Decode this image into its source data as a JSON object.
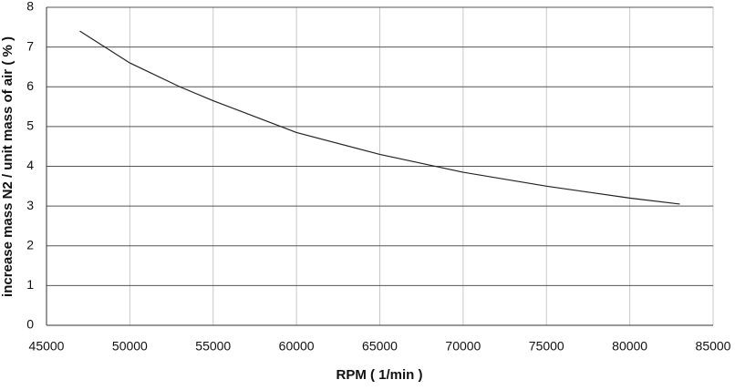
{
  "chart_data": {
    "type": "line",
    "x_label": "RPM ( 1/min )",
    "y_label": "increase mass N2 / unit mass of air ( % )",
    "x": [
      47000,
      50000,
      53000,
      55000,
      60000,
      65000,
      70000,
      75000,
      80000,
      83000
    ],
    "series": [
      {
        "color": "#222222",
        "values": [
          7.4,
          6.6,
          6.0,
          5.65,
          4.85,
          4.3,
          3.85,
          3.5,
          3.2,
          3.05
        ]
      }
    ],
    "xlim": [
      45000,
      85000
    ],
    "xticks": [
      45000,
      50000,
      55000,
      60000,
      65000,
      70000,
      75000,
      80000,
      85000
    ],
    "ylim": [
      0,
      8
    ],
    "yticks": [
      0,
      1,
      2,
      3,
      4,
      5,
      6,
      7,
      8
    ],
    "grid": true
  }
}
